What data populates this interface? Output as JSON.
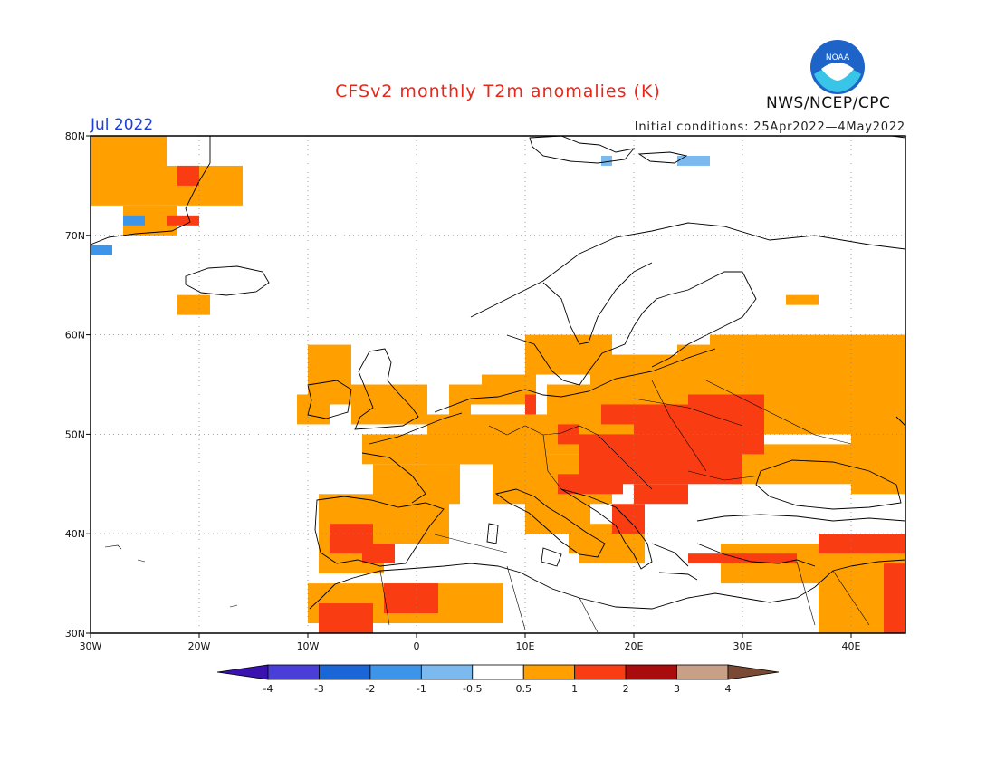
{
  "title": "CFSv2 monthly T2m anomalies (K)",
  "org": "NWS/NCEP/CPC",
  "logo_text": "NOAA",
  "month": "Jul 2022",
  "initial_conditions": "Initial conditions: 25Apr2022—4May2022",
  "colors": {
    "title": "#e8261a",
    "month": "#1a3fe0",
    "lt_neg4": "#3a12b0",
    "neg4_neg3": "#4a3ed8",
    "neg3_neg2": "#1a66d6",
    "neg2_neg1": "#3d95ea",
    "neg1_neg05": "#7cb9ee",
    "neutral": "#ffffff",
    "pos05_1": "#ffa000",
    "pos1_2": "#fa3c12",
    "pos2_3": "#a80c0c",
    "pos3_4": "#c8a088",
    "gt4": "#7a4a34"
  },
  "map": {
    "lon_range": [
      -30,
      45
    ],
    "lat_range": [
      30,
      80
    ],
    "lon_labels": [
      "30W",
      "20W",
      "10W",
      "0",
      "10E",
      "20E",
      "30E",
      "40E"
    ],
    "lat_labels": [
      "80N",
      "70N",
      "60N",
      "50N",
      "40N",
      "30N"
    ],
    "grid": "dotted"
  },
  "colorbar": {
    "labels": [
      "-4",
      "-3",
      "-2",
      "-1",
      "-0.5",
      "0.5",
      "1",
      "2",
      "3",
      "4"
    ],
    "bins": [
      "lt_neg4",
      "neg4_neg3",
      "neg3_neg2",
      "neg2_neg1",
      "neg1_neg05",
      "neutral",
      "pos05_1",
      "pos1_2",
      "pos2_3",
      "pos3_4",
      "gt4"
    ]
  },
  "anomaly_regions": [
    {
      "level": "pos05_1",
      "cells": [
        [
          -30,
          80,
          -23,
          73
        ],
        [
          -27,
          73,
          -22,
          70
        ],
        [
          -23,
          77,
          -16,
          73
        ],
        [
          -22,
          64,
          -19,
          62
        ],
        [
          -11,
          54,
          -8,
          51
        ],
        [
          -10,
          59,
          -6,
          53
        ],
        [
          -6,
          55,
          1,
          51
        ],
        [
          3,
          55,
          5,
          51
        ],
        [
          5,
          55,
          9,
          53
        ],
        [
          -5,
          50,
          8,
          47
        ],
        [
          -4,
          47,
          4,
          43
        ],
        [
          1,
          52,
          12,
          47
        ],
        [
          6,
          56,
          11,
          53
        ],
        [
          10,
          60,
          18,
          56
        ],
        [
          12,
          55,
          24,
          48
        ],
        [
          7,
          48,
          18,
          43
        ],
        [
          10,
          44,
          16,
          40
        ],
        [
          -9,
          44,
          -3,
          36
        ],
        [
          -3,
          44,
          3,
          39
        ],
        [
          -10,
          35,
          0,
          31
        ],
        [
          0,
          35,
          8,
          31
        ],
        [
          15,
          41,
          21,
          37
        ],
        [
          16,
          58,
          27,
          54
        ],
        [
          24,
          59,
          45,
          53
        ],
        [
          27,
          60,
          45,
          50
        ],
        [
          40,
          51,
          45,
          44
        ],
        [
          29,
          49,
          40,
          45
        ],
        [
          28,
          39,
          45,
          35
        ],
        [
          37,
          38,
          45,
          30
        ],
        [
          14,
          40,
          16,
          38
        ],
        [
          34,
          64,
          37,
          63
        ]
      ]
    },
    {
      "level": "pos1_2",
      "cells": [
        [
          -22,
          77,
          -20,
          75
        ],
        [
          -23,
          72,
          -20,
          71
        ],
        [
          -8,
          41,
          -4,
          38
        ],
        [
          -5,
          39,
          -2,
          37
        ],
        [
          -9,
          33,
          -4,
          30
        ],
        [
          -3,
          35,
          2,
          32
        ],
        [
          13,
          51,
          15,
          49
        ],
        [
          15,
          50,
          30,
          45
        ],
        [
          20,
          53,
          32,
          48
        ],
        [
          25,
          54,
          32,
          51
        ],
        [
          20,
          45,
          25,
          43
        ],
        [
          13,
          46,
          19,
          44
        ],
        [
          18,
          43,
          21,
          40
        ],
        [
          25,
          38,
          35,
          37
        ],
        [
          37,
          40,
          45,
          38
        ],
        [
          43,
          37,
          45,
          30
        ],
        [
          10,
          54,
          11,
          52
        ],
        [
          17,
          53,
          20,
          51
        ]
      ]
    },
    {
      "level": "neg2_neg1",
      "cells": [
        [
          -27,
          72,
          -25,
          71
        ],
        [
          -30,
          69,
          -28,
          68
        ]
      ]
    },
    {
      "level": "neg1_neg05",
      "cells": [
        [
          24,
          78,
          27,
          77
        ],
        [
          17,
          78,
          18,
          77
        ]
      ]
    }
  ]
}
